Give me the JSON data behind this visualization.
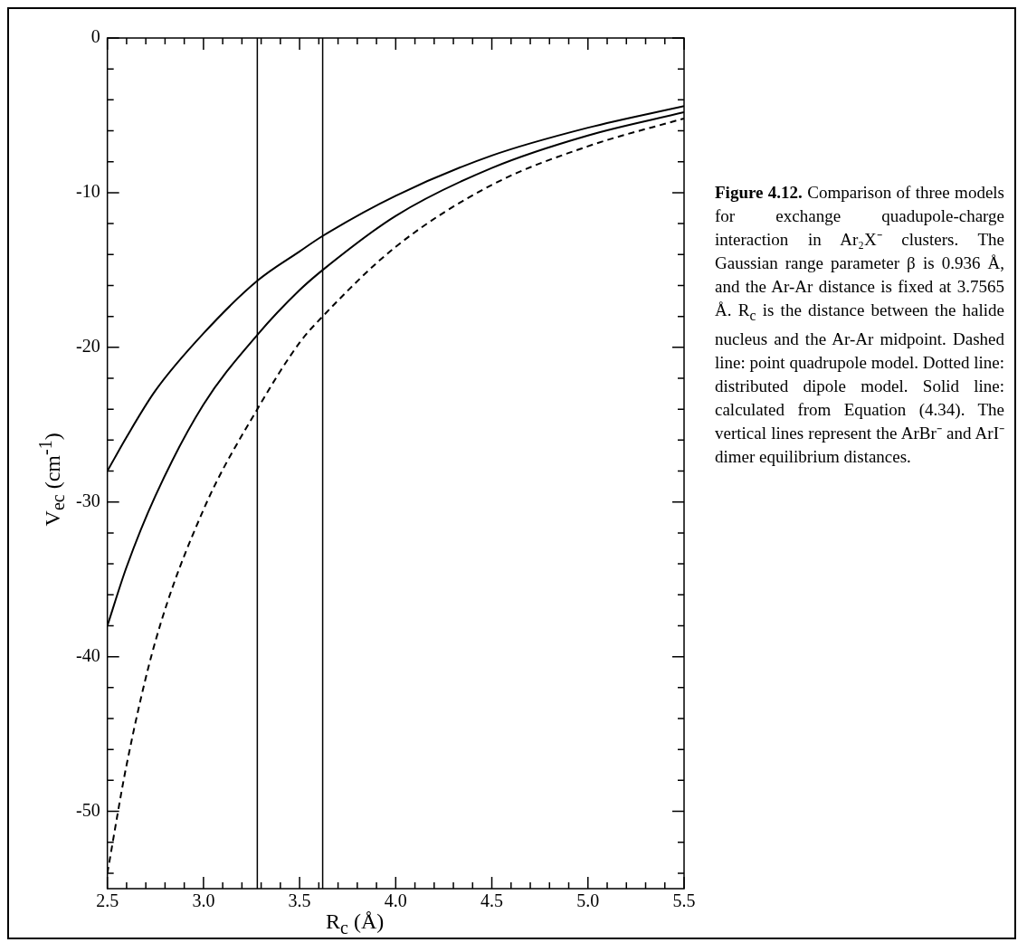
{
  "chart_data": {
    "type": "line",
    "title": "Figure 4.12.",
    "annotations": [
      "Comparison of three models for exchange quadupole-charge interaction in Ar₂X⁻ clusters. The Gaussian range parameter β is 0.936 Å, and the Ar-Ar distance is fixed at 3.7565 Å. R$_{c}$ is the distance between the halide nucleus and the Ar-Ar midpoint. Dashed line: point quadrupole model. Dotted line: distributed dipole model. Solid line: calculated from Equation (4.34). The vertical lines represent the ArBr⁻ and ArI⁻ dimer equilibrium distances."
    ],
    "xlabel": "R$_{c}$ (Å)",
    "ylabel": "V$_{ec}$ (cm$^{-1}$)",
    "x": [
      2.5,
      2.6,
      2.75,
      3.0,
      3.28,
      3.5,
      3.62,
      4.0,
      4.5,
      5.0,
      5.5
    ],
    "series": [
      {
        "color": "#000000",
        "line_style": "solid",
        "values": [
          -28,
          -25.8,
          -22.8,
          -19.1,
          -15.7,
          -13.8,
          -12.8,
          -10.2,
          -7.6,
          -5.8,
          -4.4
        ]
      },
      {
        "color": "#000000",
        "line_style": "solid",
        "values": [
          -38,
          -34.2,
          -29.6,
          -23.7,
          -19.2,
          -16.3,
          -15,
          -11.5,
          -8.4,
          -6.3,
          -4.8
        ]
      },
      {
        "color": "#000000",
        "line_style": "dashed",
        "values": [
          -54,
          -47,
          -39,
          -30.5,
          -24,
          -19.7,
          -18,
          -13.5,
          -9.5,
          -7,
          -5.2
        ]
      }
    ],
    "xlim": [
      2.5,
      5.5
    ],
    "xticks": [
      2.5,
      {
        "value": 2.6,
        "label": null
      },
      {
        "value": 2.7,
        "label": null
      },
      {
        "value": 2.8,
        "label": null
      },
      {
        "value": 2.9,
        "label": null
      },
      {
        "value": 3,
        "label": "3.0"
      },
      {
        "value": 3.1,
        "label": null
      },
      {
        "value": 3.2,
        "label": null
      },
      {
        "value": 3.3,
        "label": null
      },
      {
        "value": 3.4,
        "label": null
      },
      3.5,
      {
        "value": 3.6,
        "label": null
      },
      {
        "value": 3.7,
        "label": null
      },
      {
        "value": 3.8,
        "label": null
      },
      {
        "value": 3.9,
        "label": null
      },
      {
        "value": 4,
        "label": "4.0"
      },
      {
        "value": 4.1,
        "label": null
      },
      {
        "value": 4.2,
        "label": null
      },
      {
        "value": 4.3,
        "label": null
      },
      {
        "value": 4.4,
        "label": null
      },
      4.5,
      {
        "value": 4.6,
        "label": null
      },
      {
        "value": 4.7,
        "label": null
      },
      {
        "value": 4.8,
        "label": null
      },
      {
        "value": 4.9,
        "label": null
      },
      {
        "value": 5,
        "label": "5.0"
      },
      {
        "value": 5.1,
        "label": null
      },
      {
        "value": 5.2,
        "label": null
      },
      {
        "value": 5.3,
        "label": null
      },
      {
        "value": 5.4,
        "label": null
      },
      5.5
    ],
    "ylim": [
      -55,
      0
    ],
    "yticks": [
      {
        "value": -54,
        "label": null
      },
      {
        "value": -52,
        "label": null
      },
      -50,
      {
        "value": -48,
        "label": null
      },
      {
        "value": -46,
        "label": null
      },
      {
        "value": -44,
        "label": null
      },
      {
        "value": -42,
        "label": null
      },
      -40,
      {
        "value": -38,
        "label": null
      },
      {
        "value": -36,
        "label": null
      },
      {
        "value": -34,
        "label": null
      },
      {
        "value": -32,
        "label": null
      },
      -30,
      {
        "value": -28,
        "label": null
      },
      {
        "value": -26,
        "label": null
      },
      {
        "value": -24,
        "label": null
      },
      {
        "value": -22,
        "label": null
      },
      -20,
      {
        "value": -18,
        "label": null
      },
      {
        "value": -16,
        "label": null
      },
      {
        "value": -14,
        "label": null
      },
      {
        "value": -12,
        "label": null
      },
      -10,
      {
        "value": -8,
        "label": null
      },
      {
        "value": -6,
        "label": null
      },
      {
        "value": -4,
        "label": null
      },
      {
        "value": -2,
        "label": null
      },
      0
    ],
    "ref_lines": [
      {
        "axis": "x",
        "value": 3.28,
        "color": "#000000",
        "line_style": "solid"
      },
      {
        "axis": "x",
        "value": 3.62,
        "color": "#000000",
        "line_style": "solid"
      }
    ],
    "grid": false,
    "legend": false,
    "marker": "none"
  }
}
